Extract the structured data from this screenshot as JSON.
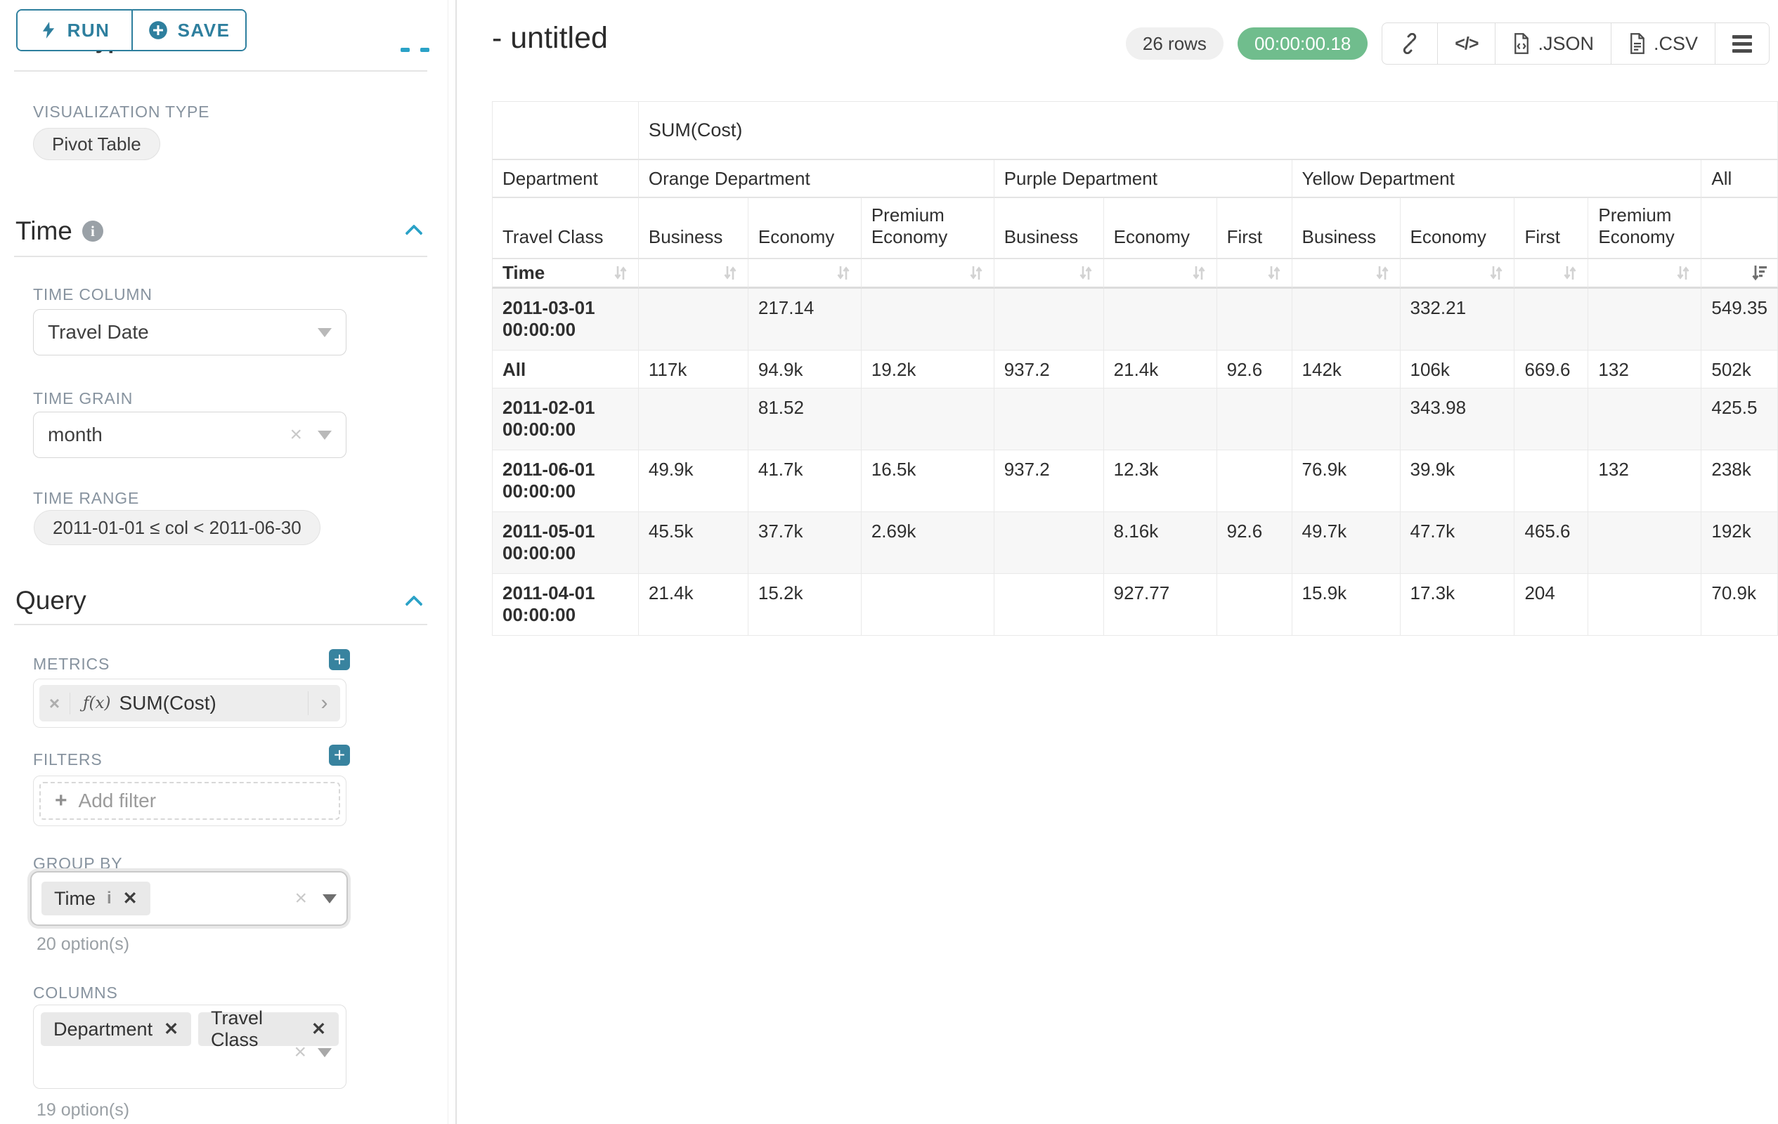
{
  "toolbar": {
    "run_label": "RUN",
    "save_label": "SAVE"
  },
  "sidebar": {
    "clipped_heading": "Chart Type",
    "viz_label": "VISUALIZATION TYPE",
    "viz_value": "Pivot Table",
    "time_title": "Time",
    "time_column_label": "TIME COLUMN",
    "time_column_value": "Travel Date",
    "time_grain_label": "TIME GRAIN",
    "time_grain_value": "month",
    "time_range_label": "TIME RANGE",
    "time_range_value": "2011-01-01 ≤ col < 2011-06-30",
    "query_title": "Query",
    "metrics_label": "METRICS",
    "metric_fx": "ƒ(x)",
    "metric_value": "SUM(Cost)",
    "filters_label": "FILTERS",
    "add_filter_label": "Add filter",
    "group_by_label": "GROUP BY",
    "group_by_pill": "Time",
    "group_by_options": "20 option(s)",
    "columns_label": "COLUMNS",
    "columns_pills": [
      {
        "label": "Department"
      },
      {
        "label": "Travel Class"
      }
    ],
    "columns_options": "19 option(s)"
  },
  "header": {
    "title": "- untitled",
    "rows_badge": "26 rows",
    "timer": "00:00:00.18",
    "export_json": ".JSON",
    "export_csv": ".CSV"
  },
  "pivot": {
    "metric_header": "SUM(Cost)",
    "row_dim_label": "Department",
    "col_dim_label": "Travel Class",
    "time_label": "Time",
    "groups": [
      {
        "label": "Orange Department",
        "cols": [
          "Business",
          "Economy",
          "Premium Economy"
        ]
      },
      {
        "label": "Purple Department",
        "cols": [
          "Business",
          "Economy",
          "First"
        ]
      },
      {
        "label": "Yellow Department",
        "cols": [
          "Business",
          "Economy",
          "First",
          "Premium Economy"
        ]
      },
      {
        "label": "All",
        "cols": [
          ""
        ]
      }
    ],
    "rows": [
      {
        "label": "2011-03-01 00:00:00",
        "values": [
          "",
          "217.14",
          "",
          "",
          "",
          "",
          "",
          "332.21",
          "",
          "",
          "549.35"
        ]
      },
      {
        "label": "All",
        "values": [
          "117k",
          "94.9k",
          "19.2k",
          "937.2",
          "21.4k",
          "92.6",
          "142k",
          "106k",
          "669.6",
          "132",
          "502k"
        ]
      },
      {
        "label": "2011-02-01 00:00:00",
        "values": [
          "",
          "81.52",
          "",
          "",
          "",
          "",
          "",
          "343.98",
          "",
          "",
          "425.5"
        ]
      },
      {
        "label": "2011-06-01 00:00:00",
        "values": [
          "49.9k",
          "41.7k",
          "16.5k",
          "937.2",
          "12.3k",
          "",
          "76.9k",
          "39.9k",
          "",
          "132",
          "238k"
        ]
      },
      {
        "label": "2011-05-01 00:00:00",
        "values": [
          "45.5k",
          "37.7k",
          "2.69k",
          "",
          "8.16k",
          "92.6",
          "49.7k",
          "47.7k",
          "465.6",
          "",
          "192k"
        ]
      },
      {
        "label": "2011-04-01 00:00:00",
        "values": [
          "21.4k",
          "15.2k",
          "",
          "",
          "927.77",
          "",
          "15.9k",
          "17.3k",
          "204",
          "",
          "70.9k"
        ]
      }
    ]
  }
}
